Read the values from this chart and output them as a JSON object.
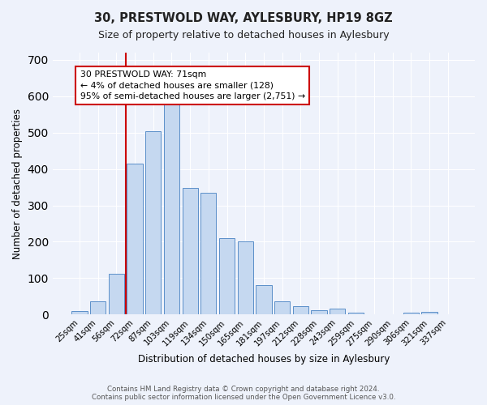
{
  "title": "30, PRESTWOLD WAY, AYLESBURY, HP19 8GZ",
  "subtitle": "Size of property relative to detached houses in Aylesbury",
  "xlabel": "Distribution of detached houses by size in Aylesbury",
  "ylabel": "Number of detached properties",
  "categories": [
    "25sqm",
    "41sqm",
    "56sqm",
    "72sqm",
    "87sqm",
    "103sqm",
    "119sqm",
    "134sqm",
    "150sqm",
    "165sqm",
    "181sqm",
    "197sqm",
    "212sqm",
    "228sqm",
    "243sqm",
    "259sqm",
    "275sqm",
    "290sqm",
    "306sqm",
    "321sqm",
    "337sqm"
  ],
  "values": [
    10,
    37,
    112,
    415,
    505,
    578,
    347,
    334,
    210,
    200,
    80,
    37,
    22,
    12,
    15,
    5,
    0,
    0,
    5,
    8,
    0
  ],
  "bar_color": "#c5d8f0",
  "bar_edge_color": "#5b8fc9",
  "vline_index": 3,
  "vline_color": "#cc0000",
  "annotation_line1": "30 PRESTWOLD WAY: 71sqm",
  "annotation_line2": "← 4% of detached houses are smaller (128)",
  "annotation_line3": "95% of semi-detached houses are larger (2,751) →",
  "ylim": [
    0,
    720
  ],
  "yticks": [
    0,
    100,
    200,
    300,
    400,
    500,
    600,
    700
  ],
  "background_color": "#eef2fb",
  "grid_color": "#ffffff",
  "footer_line1": "Contains HM Land Registry data © Crown copyright and database right 2024.",
  "footer_line2": "Contains public sector information licensed under the Open Government Licence v3.0."
}
